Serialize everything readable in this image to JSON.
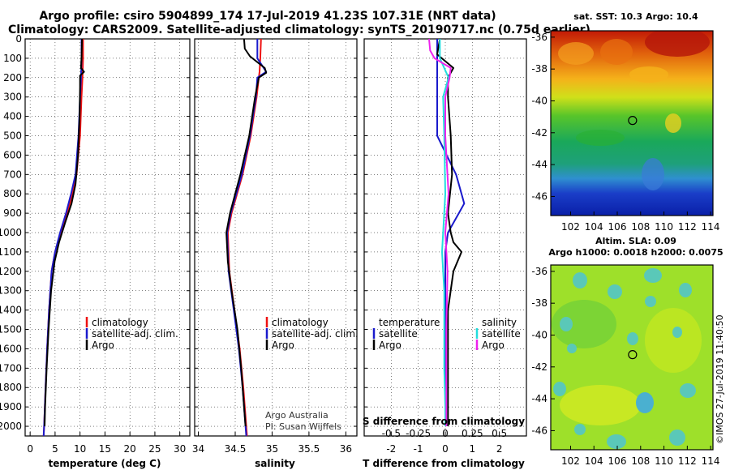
{
  "header": {
    "line1": "Argo profile: csiro 5904899_174 17-Jul-2019 41.23S 107.31E (NRT data)",
    "line2": "Climatology: CARS2009. Satellite-adjusted climatology: synTS_20190717.nc (0.75d earlier)"
  },
  "colors": {
    "climatology": "#ee1111",
    "satellite": "#1a1acc",
    "argo": "#000000",
    "satellite_s": "#22dddd",
    "argo_s": "#ee22ee"
  },
  "chart_data": [
    {
      "type": "line",
      "name": "temperature",
      "xlabel": "temperature (deg C)",
      "ylabel": "",
      "xlim": [
        -1,
        32
      ],
      "ylim": [
        2050,
        0
      ],
      "xticks": [
        "0",
        "5",
        "10",
        "15",
        "20",
        "25",
        "30"
      ],
      "yticks": [
        "0",
        "100",
        "200",
        "300",
        "400",
        "500",
        "600",
        "700",
        "800",
        "900",
        "1000",
        "1100",
        "1200",
        "1300",
        "1400",
        "1500",
        "1600",
        "1700",
        "1800",
        "1900",
        "2000"
      ],
      "legend": [
        "climatology",
        "satellite-adj. clim.",
        "Argo"
      ],
      "series": [
        {
          "name": "climatology",
          "depth": [
            0,
            100,
            200,
            300,
            500,
            700,
            800,
            900,
            1000,
            1100,
            1200,
            1400,
            1600,
            1800,
            2000,
            2050
          ],
          "values": [
            10.6,
            10.6,
            10.5,
            10.3,
            10.0,
            9.3,
            8.5,
            7.4,
            6.1,
            5.0,
            4.3,
            3.8,
            3.4,
            3.1,
            2.8,
            2.7
          ]
        },
        {
          "name": "satellite-adj. clim.",
          "depth": [
            0,
            100,
            200,
            300,
            500,
            700,
            800,
            900,
            1000,
            1100,
            1200,
            1400,
            1600,
            1800,
            2000,
            2050
          ],
          "values": [
            10.3,
            10.3,
            10.2,
            10.0,
            9.7,
            9.1,
            8.2,
            7.2,
            6.0,
            5.0,
            4.3,
            3.8,
            3.4,
            3.1,
            2.8,
            2.7
          ]
        },
        {
          "name": "Argo",
          "depth": [
            0,
            100,
            150,
            170,
            190,
            250,
            400,
            600,
            750,
            850,
            950,
            1050,
            1150,
            1300,
            1500,
            1700,
            1900,
            2000
          ],
          "values": [
            10.4,
            10.3,
            10.2,
            10.8,
            10.0,
            10.0,
            9.9,
            9.6,
            9.1,
            8.3,
            7.0,
            5.8,
            4.9,
            4.2,
            3.7,
            3.3,
            3.0,
            2.9
          ]
        }
      ]
    },
    {
      "type": "line",
      "name": "salinity",
      "xlabel": "salinity",
      "xlim": [
        33.95,
        36.15
      ],
      "ylim": [
        2050,
        0
      ],
      "xticks": [
        "34",
        "34.5",
        "35",
        "35.5",
        "36"
      ],
      "legend": [
        "climatology",
        "satellite-adj. clim.",
        "Argo"
      ],
      "annotations": [
        "Argo Australia",
        "PI: Susan Wijffels"
      ],
      "series": [
        {
          "name": "climatology",
          "depth": [
            0,
            100,
            170,
            200,
            300,
            500,
            700,
            900,
            1000,
            1200,
            1400,
            1600,
            1800,
            2000,
            2050
          ],
          "values": [
            34.85,
            34.84,
            34.83,
            34.82,
            34.79,
            34.71,
            34.6,
            34.45,
            34.4,
            34.42,
            34.49,
            34.56,
            34.61,
            34.65,
            34.66
          ]
        },
        {
          "name": "satellite-adj. clim.",
          "depth": [
            0,
            100,
            170,
            200,
            300,
            500,
            700,
            900,
            1000,
            1200,
            1400,
            1600,
            1800,
            2000,
            2050
          ],
          "values": [
            34.8,
            34.8,
            34.92,
            34.8,
            34.78,
            34.7,
            34.59,
            34.44,
            34.39,
            34.41,
            34.48,
            34.55,
            34.6,
            34.64,
            34.65
          ]
        },
        {
          "name": "Argo",
          "depth": [
            0,
            50,
            90,
            120,
            150,
            175,
            200,
            300,
            500,
            700,
            900,
            1000,
            1150,
            1300,
            1500,
            1700,
            1900,
            2000
          ],
          "values": [
            34.62,
            34.63,
            34.7,
            34.8,
            34.9,
            34.92,
            34.82,
            34.77,
            34.69,
            34.57,
            34.43,
            34.38,
            34.4,
            34.45,
            34.53,
            34.58,
            34.62,
            34.64
          ]
        }
      ]
    },
    {
      "type": "line",
      "name": "difference",
      "xlabel": "T difference from climatology",
      "top_axis_label": "S difference from climatology",
      "xlim": [
        -3,
        3
      ],
      "ylim": [
        2050,
        0
      ],
      "xticks": [
        "-2",
        "-1",
        "0",
        "1",
        "2"
      ],
      "top_ticks": [
        "-0.5",
        "-0.25",
        "0",
        "0.25",
        "0.5"
      ],
      "legend_titles": [
        "temperature",
        "salinity"
      ],
      "legend": [
        "satellite",
        "Argo",
        "satellite",
        "Argo"
      ],
      "series": [
        {
          "name": "temperature satellite",
          "depth": [
            0,
            100,
            200,
            300,
            500,
            700,
            800,
            850,
            900,
            1000,
            1100,
            1200,
            1400,
            1600,
            1800,
            2000
          ],
          "values": [
            -0.3,
            -0.3,
            -0.3,
            -0.3,
            -0.3,
            0.4,
            0.6,
            0.7,
            0.5,
            0.1,
            0,
            0,
            0,
            0,
            0,
            0
          ]
        },
        {
          "name": "temperature Argo",
          "depth": [
            0,
            80,
            150,
            200,
            300,
            500,
            700,
            900,
            1000,
            1050,
            1100,
            1200,
            1400,
            1600,
            1800,
            2000
          ],
          "values": [
            -0.2,
            -0.3,
            0.3,
            0.1,
            0.1,
            0.2,
            0.25,
            0.1,
            0.2,
            0.3,
            0.6,
            0.3,
            0.1,
            0.1,
            0.1,
            0.1
          ]
        },
        {
          "name": "salinity satellite",
          "depth": [
            0,
            100,
            200,
            300,
            500,
            800,
            1100,
            1300,
            1500,
            1700,
            1900,
            2000
          ],
          "values": [
            -0.05,
            -0.05,
            0.03,
            -0.02,
            -0.01,
            0,
            -0.03,
            -0.01,
            -0.01,
            -0.01,
            0,
            0
          ]
        },
        {
          "name": "salinity Argo",
          "depth": [
            0,
            60,
            100,
            150,
            200,
            300,
            500,
            800,
            1000,
            1200,
            1500,
            1800,
            2000
          ],
          "values": [
            -0.15,
            -0.14,
            -0.1,
            0.05,
            0.04,
            0,
            0,
            0.03,
            0,
            0.02,
            0.01,
            0.01,
            0.01
          ]
        }
      ]
    }
  ],
  "maps": {
    "sst": {
      "title": "sat. SST: 10.3 Argo: 10.4",
      "xticks": [
        "102",
        "104",
        "106",
        "108",
        "110",
        "112",
        "114"
      ],
      "yticks": [
        "-36",
        "-38",
        "-40",
        "-42",
        "-44",
        "-46"
      ],
      "float_lon": 107.31,
      "float_lat": -41.23
    },
    "sla": {
      "title1": "Altim. SLA: 0.09",
      "title2": "Argo h1000: 0.0018 h2000: 0.0075",
      "xticks": [
        "102",
        "104",
        "106",
        "108",
        "110",
        "112",
        "114"
      ],
      "yticks": [
        "-36",
        "-38",
        "-40",
        "-42",
        "-44",
        "-46"
      ],
      "float_lon": 107.31,
      "float_lat": -41.23
    }
  },
  "credit": "©IMOS 27-Jul-2019 11:40:50"
}
